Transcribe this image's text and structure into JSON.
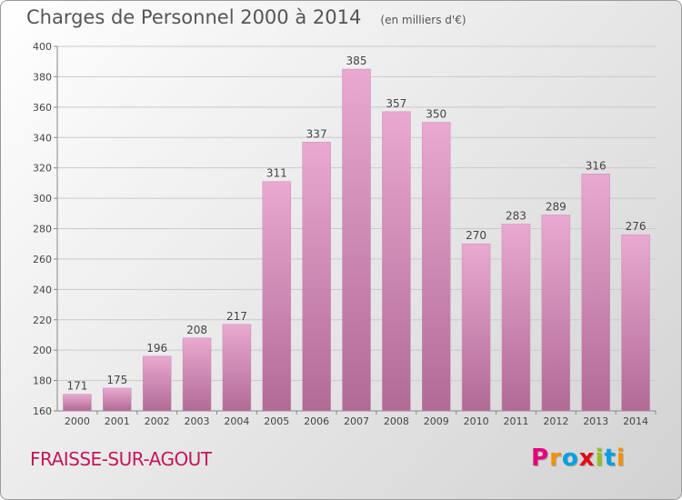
{
  "header": {
    "title": "Charges de Personnel 2000 à 2014",
    "subtitle": "(en milliers d'€)"
  },
  "footer": {
    "commune": "FRAISSE-SUR-AGOUT",
    "brand": "Proxiti",
    "brand_colors": [
      "#e4007c",
      "#f39200",
      "#00a0e3",
      "#e30613",
      "#95c11f",
      "#00a0e3",
      "#f39200"
    ]
  },
  "colors": {
    "bar_top": "#e9a9d0",
    "bar_bottom": "#b06a96",
    "grid": "#c9c9c9",
    "axis_text": "#444444",
    "commune": "#c2185b"
  },
  "chart_data": {
    "type": "bar",
    "title": "Charges de Personnel 2000 à 2014",
    "subtitle": "(en milliers d'€)",
    "xlabel": "",
    "ylabel": "",
    "categories": [
      "2000",
      "2001",
      "2002",
      "2003",
      "2004",
      "2005",
      "2006",
      "2007",
      "2008",
      "2009",
      "2010",
      "2011",
      "2012",
      "2013",
      "2014"
    ],
    "values": [
      171,
      175,
      196,
      208,
      217,
      311,
      337,
      385,
      357,
      350,
      270,
      283,
      289,
      316,
      276
    ],
    "ylim": [
      160,
      400
    ],
    "yticks": [
      160,
      180,
      200,
      220,
      240,
      260,
      280,
      300,
      320,
      340,
      360,
      380,
      400
    ],
    "grid": true,
    "data_labels": true,
    "legend": "none"
  }
}
